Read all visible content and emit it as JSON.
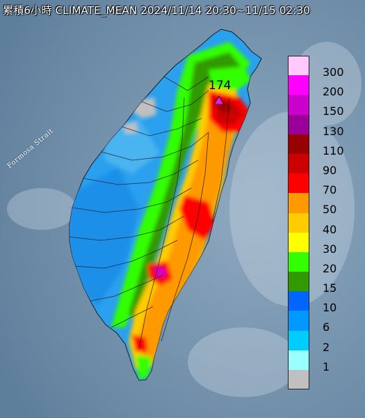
{
  "title": "累積6小時 CLIMATE_MEAN 2024/11/14 20:30~11/15 02:30",
  "strait_label": "Formosa Strait",
  "max_value_label": "174",
  "colors": {
    "sea": "#6f8ea8",
    "land_outline": "#1a1a1a",
    "marker": "#e020e0"
  },
  "legend": {
    "unit": "",
    "bins": [
      {
        "label": "300",
        "color": "#ffc8ff"
      },
      {
        "label": "200",
        "color": "#ff00ff"
      },
      {
        "label": "150",
        "color": "#cc00cc"
      },
      {
        "label": "130",
        "color": "#990099"
      },
      {
        "label": "110",
        "color": "#990000"
      },
      {
        "label": "90",
        "color": "#cc0000"
      },
      {
        "label": "70",
        "color": "#ff0000"
      },
      {
        "label": "50",
        "color": "#ff9900"
      },
      {
        "label": "40",
        "color": "#ffcc00"
      },
      {
        "label": "30",
        "color": "#ffff00"
      },
      {
        "label": "20",
        "color": "#33ff00"
      },
      {
        "label": "15",
        "color": "#339900"
      },
      {
        "label": "10",
        "color": "#0066ff"
      },
      {
        "label": "6",
        "color": "#0099ff"
      },
      {
        "label": "2",
        "color": "#00ccff"
      },
      {
        "label": "1",
        "color": "#99ffff"
      },
      {
        "label": "",
        "color": "#c0c0c0"
      }
    ]
  },
  "regions": [
    {
      "name": "northeast-plain",
      "band": "110"
    },
    {
      "name": "central-mountains",
      "band": "70"
    },
    {
      "name": "southern-mountains",
      "band": "50"
    },
    {
      "name": "western-plain",
      "band": "6"
    }
  ]
}
